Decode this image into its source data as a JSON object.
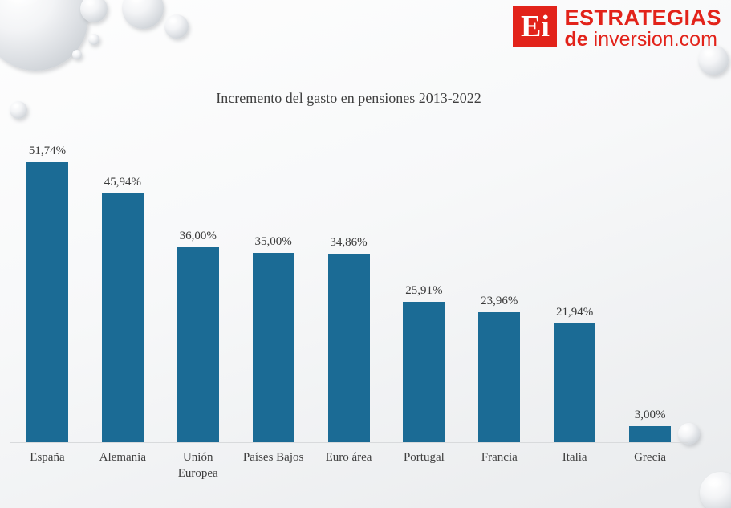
{
  "logo": {
    "mark": "Ei",
    "line1": "ESTRATEGIAS",
    "line2_bold": "de",
    "line2_rest": "inversion.com",
    "brand_color": "#e2231a"
  },
  "chart_data": {
    "type": "bar",
    "title": "Incremento del gasto en pensiones 2013-2022",
    "categories": [
      "España",
      "Alemania",
      "Unión Europea",
      "Países Bajos",
      "Euro área",
      "Portugal",
      "Francia",
      "Italia",
      "Grecia"
    ],
    "values": [
      51.74,
      45.94,
      36.0,
      35.0,
      34.86,
      25.91,
      23.96,
      21.94,
      3.0
    ],
    "value_labels": [
      "51,74%",
      "45,94%",
      "36,00%",
      "35,00%",
      "34,86%",
      "25,91%",
      "23,96%",
      "21,94%",
      "3,00%"
    ],
    "bar_color": "#1b6b95",
    "ylim": [
      0,
      55
    ],
    "xlabel": "",
    "ylabel": "",
    "grid": false,
    "legend": false
  }
}
